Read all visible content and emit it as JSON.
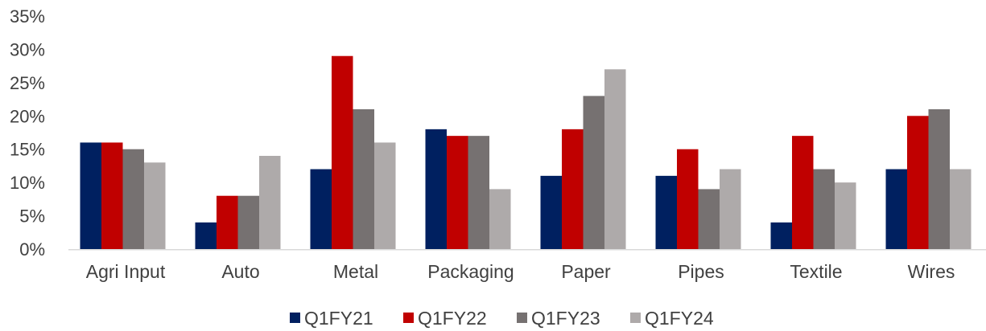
{
  "chart_data": {
    "type": "bar",
    "categories": [
      "Agri Input",
      "Auto",
      "Metal",
      "Packaging",
      "Paper",
      "Pipes",
      "Textile",
      "Wires"
    ],
    "series": [
      {
        "name": "Q1FY21",
        "color": "#002060",
        "values": [
          16,
          4,
          12,
          18,
          11,
          11,
          4,
          12
        ]
      },
      {
        "name": "Q1FY22",
        "color": "#c00000",
        "values": [
          16,
          8,
          29,
          17,
          18,
          15,
          17,
          20
        ]
      },
      {
        "name": "Q1FY23",
        "color": "#767171",
        "values": [
          15,
          8,
          21,
          17,
          23,
          9,
          12,
          21
        ]
      },
      {
        "name": "Q1FY24",
        "color": "#aeaaaa",
        "values": [
          13,
          14,
          16,
          9,
          27,
          12,
          10,
          12
        ]
      }
    ],
    "y_ticks": [
      "0%",
      "5%",
      "10%",
      "15%",
      "20%",
      "25%",
      "30%",
      "35%"
    ],
    "ylim": [
      0,
      35
    ],
    "y_unit": "%",
    "grid": false,
    "legend_position": "bottom",
    "title": "",
    "xlabel": "",
    "ylabel": ""
  }
}
